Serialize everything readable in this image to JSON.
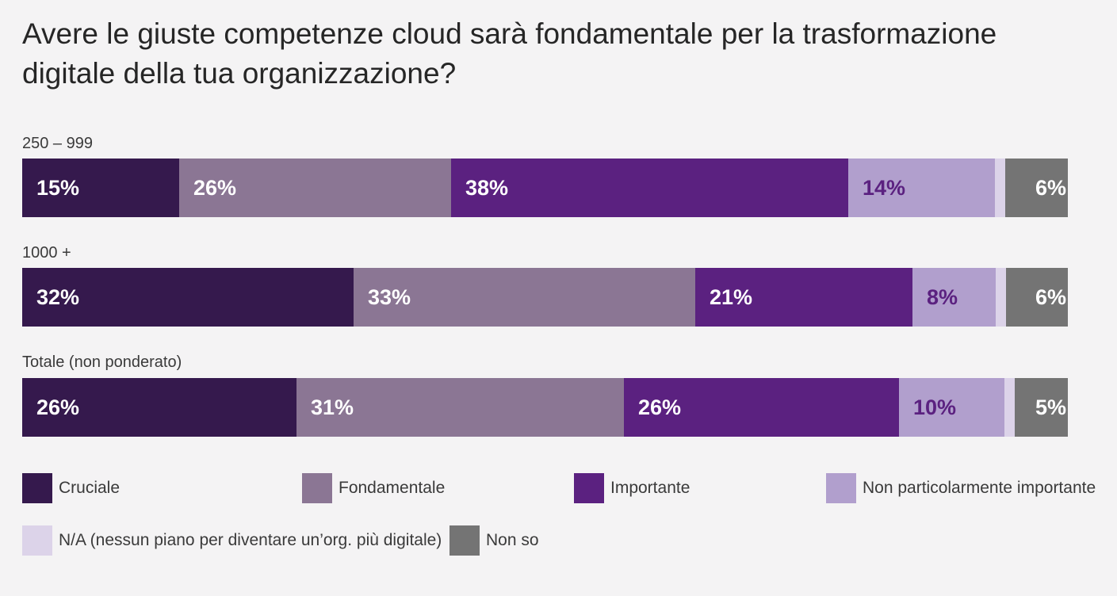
{
  "chart_data": {
    "type": "bar",
    "orientation": "horizontal",
    "stacked": true,
    "percent_stacked": true,
    "title": "Avere le giuste competenze cloud sarà fondamentale per la trasformazione digitale della tua organizzazione?",
    "categories": [
      "250 – 999",
      "1000 +",
      "Totale (non ponderato)"
    ],
    "series": [
      {
        "name": "Cruciale",
        "color": "#35194d",
        "label_color": "#ffffff",
        "values": [
          15,
          32,
          26
        ],
        "labels": [
          "15%",
          "32%",
          "26%"
        ]
      },
      {
        "name": "Fondamentale",
        "color": "#8b7694",
        "label_color": "#ffffff",
        "values": [
          26,
          33,
          31
        ],
        "labels": [
          "26%",
          "33%",
          "31%"
        ]
      },
      {
        "name": "Importante",
        "color": "#5b2180",
        "label_color": "#ffffff",
        "values": [
          38,
          21,
          26
        ],
        "labels": [
          "38%",
          "21%",
          "26%"
        ]
      },
      {
        "name": "Non particolarmente importante",
        "color": "#b19fcd",
        "label_color": "#5b2180",
        "values": [
          14,
          8,
          10
        ],
        "labels": [
          "14%",
          "8%",
          "10%"
        ]
      },
      {
        "name": "N/A (nessun piano per diventare un’org. più digitale)",
        "color": "#dcd3e9",
        "label_color": "#5b2180",
        "values": [
          1,
          1,
          1
        ],
        "labels": [
          "",
          "",
          ""
        ]
      },
      {
        "name": "Non so",
        "color": "#747474",
        "label_color": "#ffffff",
        "values": [
          6,
          6,
          5
        ],
        "labels": [
          "6%",
          "6%",
          "5%"
        ]
      }
    ],
    "xlim": [
      0,
      100
    ],
    "grid": false,
    "legend": "bottom"
  }
}
